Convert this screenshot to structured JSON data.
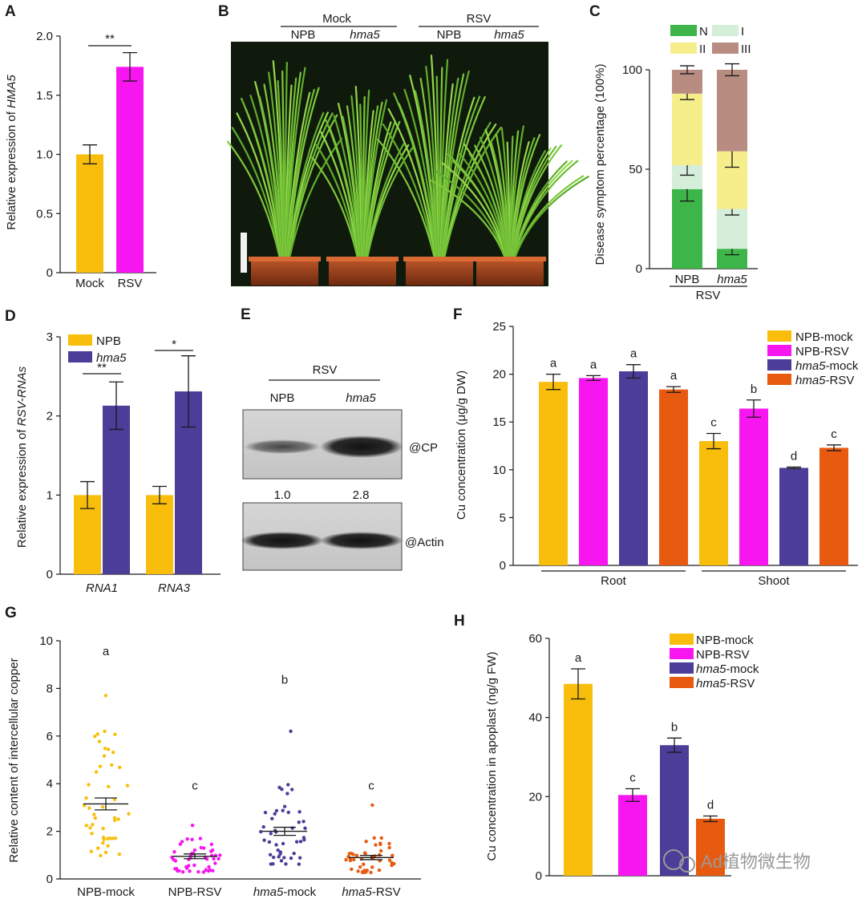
{
  "colors": {
    "npb_mock": "#F9BE0C",
    "npb_rsv": "#F816F0",
    "hma5_mock": "#4B3D98",
    "hma5_rsv": "#E85A10",
    "stack_N": "#3DB548",
    "stack_I": "#D5EEDA",
    "stack_II": "#F5EE8A",
    "stack_III": "#B98C82",
    "photo_bg": "#111a0e"
  },
  "panels": {
    "A": {
      "letter": "A"
    },
    "B": {
      "letter": "B",
      "group1": "Mock",
      "group2": "RSV",
      "sub1": "NPB",
      "sub2": "hma5",
      "sub3": "NPB",
      "sub4": "hma5"
    },
    "C": {
      "letter": "C"
    },
    "D": {
      "letter": "D"
    },
    "E": {
      "letter": "E",
      "header": "RSV",
      "lane1": "NPB",
      "lane2": "hma5",
      "band1": "@CP",
      "band2": "@Actin",
      "q1": "1.0",
      "q2": "2.8"
    },
    "F": {
      "letter": "F"
    },
    "G": {
      "letter": "G"
    },
    "H": {
      "letter": "H"
    }
  },
  "watermark": {
    "text": "Ad植物微生物"
  },
  "chart_data": [
    {
      "id": "A",
      "type": "bar",
      "categories": [
        "Mock",
        "RSV"
      ],
      "values": [
        1.0,
        1.74
      ],
      "errors": [
        0.08,
        0.12
      ],
      "ylabel_prefix": "Relative expression of ",
      "ylabel_gene": "HMA5",
      "ylim": [
        0,
        2.0
      ],
      "yticks": [
        "0",
        "0.5",
        "1.0",
        "1.5",
        "2.0"
      ],
      "significance": "**"
    },
    {
      "id": "C",
      "type": "bar",
      "stacked": true,
      "categories": [
        "NPB",
        "hma5"
      ],
      "group_label": "RSV",
      "ylabel": "Disease symptom percentage (100%)",
      "ylim": [
        0,
        100
      ],
      "yticks": [
        "0",
        "50",
        "100"
      ],
      "legend": [
        "N",
        "I",
        "II",
        "III"
      ],
      "series": [
        {
          "name": "N",
          "values": [
            40,
            10
          ],
          "errors": [
            6,
            3
          ]
        },
        {
          "name": "I",
          "values": [
            12,
            20
          ],
          "errors": [
            5,
            3
          ]
        },
        {
          "name": "II",
          "values": [
            36,
            29
          ],
          "errors": [
            3,
            8
          ]
        },
        {
          "name": "III",
          "values": [
            12,
            41
          ],
          "errors": [
            2,
            3
          ]
        }
      ]
    },
    {
      "id": "D",
      "type": "bar",
      "categories": [
        "RNA1",
        "RNA3"
      ],
      "series": [
        {
          "name": "NPB",
          "values": [
            1.0,
            1.0
          ],
          "errors": [
            0.17,
            0.11
          ]
        },
        {
          "name": "hma5",
          "values": [
            2.13,
            2.31
          ],
          "errors": [
            0.3,
            0.45
          ]
        }
      ],
      "ylabel_prefix": "Relative expression of ",
      "ylabel_gene": "RSV-RNAs",
      "ylim": [
        0,
        3
      ],
      "yticks": [
        "0",
        "1",
        "2",
        "3"
      ],
      "significance": [
        "**",
        "*"
      ]
    },
    {
      "id": "F",
      "type": "bar",
      "categories": [
        "Root",
        "Shoot"
      ],
      "series": [
        {
          "name": "NPB-mock",
          "name_gene": "NPB",
          "name_suffix": "-mock",
          "values": [
            19.2,
            13.0
          ],
          "errors": [
            0.8,
            0.8
          ],
          "letters": [
            "a",
            "c"
          ]
        },
        {
          "name": "NPB-RSV",
          "name_gene": "NPB",
          "name_suffix": "-RSV",
          "values": [
            19.6,
            16.4
          ],
          "errors": [
            0.25,
            0.9
          ],
          "letters": [
            "a",
            "b"
          ]
        },
        {
          "name": "hma5-mock",
          "name_gene": "hma5",
          "name_suffix": "-mock",
          "values": [
            20.3,
            10.2
          ],
          "errors": [
            0.7,
            0.08
          ],
          "letters": [
            "a",
            "d"
          ]
        },
        {
          "name": "hma5-RSV",
          "name_gene": "hma5",
          "name_suffix": "-RSV",
          "values": [
            18.4,
            12.3
          ],
          "errors": [
            0.3,
            0.3
          ],
          "letters": [
            "a",
            "c"
          ]
        }
      ],
      "ylabel": "Cu concentration (μg/g DW)",
      "ylim": [
        0,
        25
      ],
      "yticks": [
        "0",
        "5",
        "10",
        "15",
        "20",
        "25"
      ]
    },
    {
      "id": "G",
      "type": "scatter",
      "categories": [
        "NPB-mock",
        "NPB-RSV",
        "hma5-mock",
        "hma5-RSV"
      ],
      "cat_gene": [
        "NPB",
        "NPB",
        "hma5",
        "hma5"
      ],
      "cat_suffix": [
        "-mock",
        "-RSV",
        "-mock",
        "-RSV"
      ],
      "means": [
        3.15,
        0.95,
        2.0,
        0.9
      ],
      "sem": [
        0.25,
        0.1,
        0.17,
        0.09
      ],
      "letters": [
        "a",
        "c",
        "b",
        "c"
      ],
      "maxima": [
        7.7,
        2.25,
        6.2,
        3.1
      ],
      "ylabel": "Relative content of intercellular copper",
      "ylim": [
        0,
        10
      ],
      "yticks": [
        "0",
        "2",
        "4",
        "6",
        "8",
        "10"
      ]
    },
    {
      "id": "H",
      "type": "bar",
      "categories": [
        "NPB-mock",
        "NPB-RSV",
        "hma5-mock",
        "hma5-RSV"
      ],
      "cat_gene": [
        "NPB",
        "NPB",
        "hma5",
        "hma5"
      ],
      "cat_suffix": [
        "-mock",
        "-RSV",
        "-mock",
        "-RSV"
      ],
      "values": [
        48.5,
        20.4,
        33.0,
        14.4
      ],
      "errors": [
        3.8,
        1.6,
        1.8,
        0.7
      ],
      "letters": [
        "a",
        "c",
        "b",
        "d"
      ],
      "ylabel": "Cu concentration in apoplast (ng/g FW)",
      "ylim": [
        0,
        60
      ],
      "yticks": [
        "0",
        "20",
        "40",
        "60"
      ]
    }
  ]
}
